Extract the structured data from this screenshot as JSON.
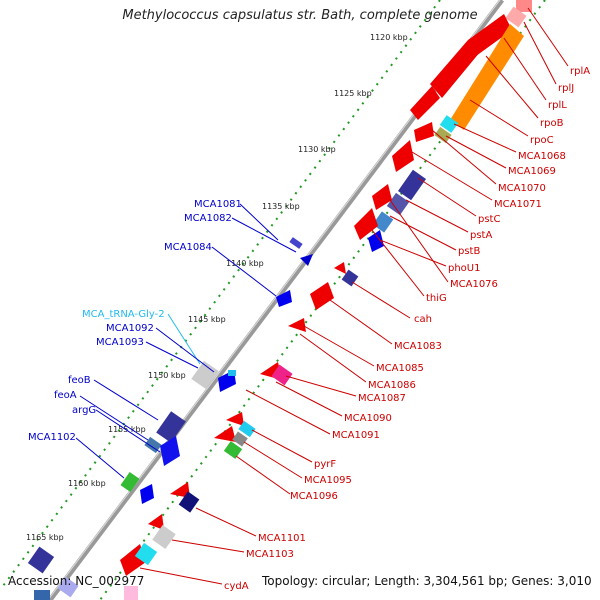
{
  "title": "Methylococcus capsulatus str. Bath, complete genome",
  "footer": {
    "accession": "Accession: NC_002977",
    "topology": "Topology: circular; Length: 3,304,561 bp; Genes: 3,010"
  },
  "ruler_ticks": [
    "1120 kbp",
    "1125 kbp",
    "1130 kbp",
    "1135 kbp",
    "1140 kbp",
    "1145 kbp",
    "1150 kbp",
    "1155 kbp",
    "1160 kbp",
    "1165 kbp"
  ],
  "left_labels": [
    {
      "text": "MCA1081",
      "color": "#0000cc"
    },
    {
      "text": "MCA1082",
      "color": "#0000cc"
    },
    {
      "text": "MCA1084",
      "color": "#0000cc"
    },
    {
      "text": "MCA_tRNA-Gly-2",
      "color": "#22bbee"
    },
    {
      "text": "MCA1092",
      "color": "#0000cc"
    },
    {
      "text": "MCA1093",
      "color": "#0000cc"
    },
    {
      "text": "feoB",
      "color": "#0000cc"
    },
    {
      "text": "feoA",
      "color": "#0000cc"
    },
    {
      "text": "argG",
      "color": "#0000cc"
    },
    {
      "text": "MCA1102",
      "color": "#0000cc"
    }
  ],
  "right_labels": [
    {
      "text": "rplA",
      "color": "#cc0000"
    },
    {
      "text": "rplJ",
      "color": "#cc0000"
    },
    {
      "text": "rplL",
      "color": "#cc0000"
    },
    {
      "text": "rpoB",
      "color": "#cc0000"
    },
    {
      "text": "rpoC",
      "color": "#cc0000"
    },
    {
      "text": "MCA1068",
      "color": "#cc0000"
    },
    {
      "text": "MCA1069",
      "color": "#cc0000"
    },
    {
      "text": "MCA1070",
      "color": "#cc0000"
    },
    {
      "text": "MCA1071",
      "color": "#cc0000"
    },
    {
      "text": "pstC",
      "color": "#cc0000"
    },
    {
      "text": "pstA",
      "color": "#cc0000"
    },
    {
      "text": "pstB",
      "color": "#cc0000"
    },
    {
      "text": "phoU1",
      "color": "#cc0000"
    },
    {
      "text": "MCA1076",
      "color": "#cc0000"
    },
    {
      "text": "thiG",
      "color": "#cc0000"
    },
    {
      "text": "cah",
      "color": "#cc0000"
    },
    {
      "text": "MCA1083",
      "color": "#cc0000"
    },
    {
      "text": "MCA1085",
      "color": "#cc0000"
    },
    {
      "text": "MCA1086",
      "color": "#cc0000"
    },
    {
      "text": "MCA1087",
      "color": "#cc0000"
    },
    {
      "text": "MCA1090",
      "color": "#cc0000"
    },
    {
      "text": "MCA1091",
      "color": "#cc0000"
    },
    {
      "text": "pyrF",
      "color": "#cc0000"
    },
    {
      "text": "MCA1095",
      "color": "#cc0000"
    },
    {
      "text": "MCA1096",
      "color": "#cc0000"
    },
    {
      "text": "MCA1101",
      "color": "#cc0000"
    },
    {
      "text": "MCA1103",
      "color": "#cc0000"
    },
    {
      "text": "cydA",
      "color": "#cc0000"
    }
  ],
  "colors": {
    "forward": "#ee0000",
    "reverse": "#0000dd",
    "backbone": "#888888",
    "ruler_dots": "#228822"
  }
}
